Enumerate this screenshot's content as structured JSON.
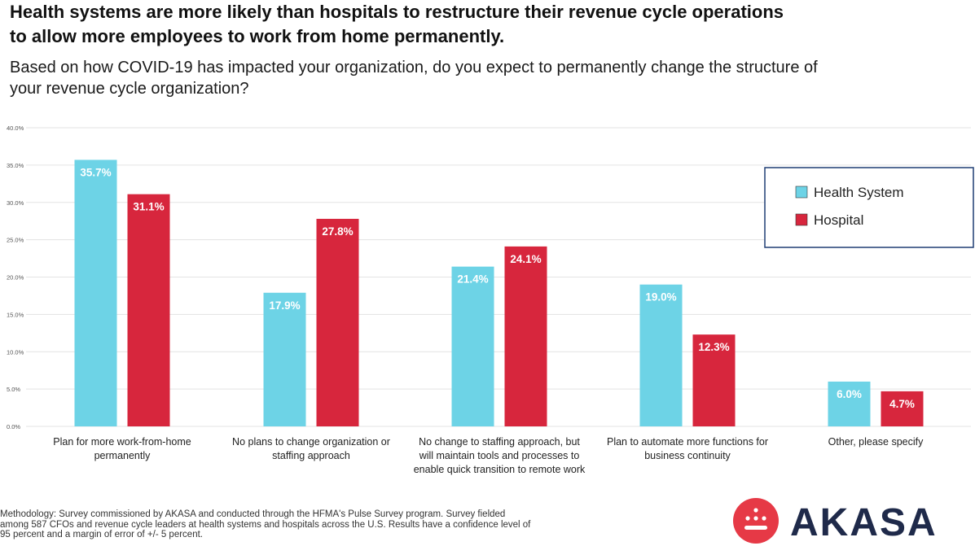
{
  "header": {
    "title_lines": [
      "Health systems are more likely than hospitals to restructure their revenue cycle operations",
      "to allow more employees to work from home permanently."
    ],
    "subtitle_lines": [
      "Based on how COVID-19 has impacted your organization, do you expect to permanently change the structure of",
      "your revenue cycle organization?"
    ]
  },
  "chart_data": {
    "type": "bar",
    "title": "",
    "xlabel": "",
    "ylabel": "",
    "ylim": [
      0,
      40
    ],
    "yticks": [
      0,
      5,
      10,
      15,
      20,
      25,
      30,
      35,
      40
    ],
    "ytick_labels": [
      "0.0%",
      "5.0%",
      "10.0%",
      "15.0%",
      "20.0%",
      "25.0%",
      "30.0%",
      "35.0%",
      "40.0%"
    ],
    "grid": true,
    "legend_position": "right",
    "categories": [
      [
        "Plan for more work-from-home",
        "permanently"
      ],
      [
        "No plans to change organization or",
        "staffing approach"
      ],
      [
        "No change to staffing approach, but",
        "will maintain tools  and processes to",
        "enable quick transition to remote work"
      ],
      [
        "Plan to automate more functions for",
        "business continuity"
      ],
      [
        "Other, please specify"
      ]
    ],
    "series": [
      {
        "name": "Health System",
        "color": "#6dd3e6",
        "values": [
          35.7,
          17.9,
          21.4,
          19.0,
          6.0
        ],
        "labels": [
          "35.7%",
          "17.9%",
          "21.4%",
          "19.0%",
          "6.0%"
        ]
      },
      {
        "name": "Hospital",
        "color": "#d7263d",
        "values": [
          31.1,
          27.8,
          24.1,
          12.3,
          4.7
        ],
        "labels": [
          "31.1%",
          "27.8%",
          "24.1%",
          "12.3%",
          "4.7%"
        ]
      }
    ]
  },
  "footer": {
    "methodology_lines": [
      "Methodology: Survey commissioned by  AKASA  and conducted through the HFMA's Pulse Survey program. Survey fielded",
      "among 587 CFOs and revenue cycle leaders at health systems and hospitals across the U.S. Results have a confidence level of",
      "95 percent and a margin of error of +/- 5 percent."
    ],
    "logo_text": "AKASA",
    "logo_color": "#e63946",
    "logo_text_color": "#1f2a4a"
  }
}
